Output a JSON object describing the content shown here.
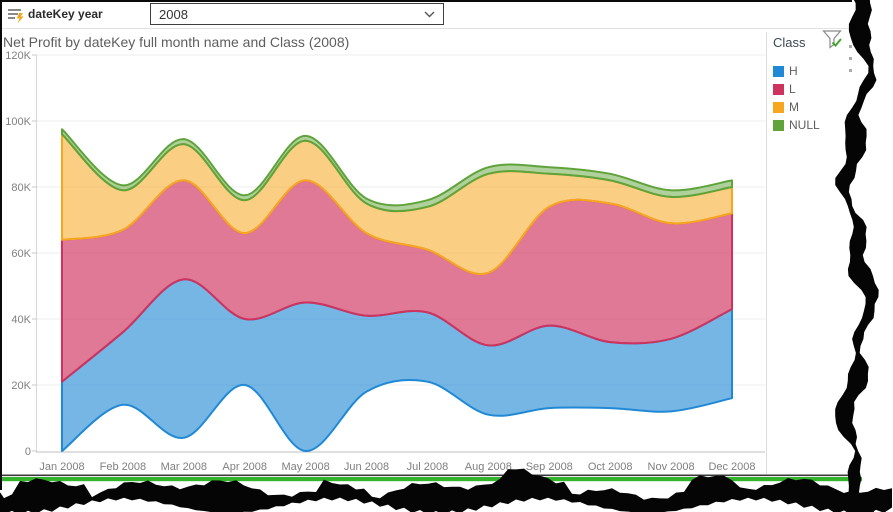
{
  "slicer": {
    "label": "dateKey year",
    "value": "2008"
  },
  "chart": {
    "title": "Net Profit by dateKey full month name and Class (2008)"
  },
  "legend": {
    "title": "Class",
    "items": [
      {
        "label": "H",
        "color": "#2089D5"
      },
      {
        "label": "L",
        "color": "#CE335E"
      },
      {
        "label": "M",
        "color": "#F6A71F"
      },
      {
        "label": "NULL",
        "color": "#5FA33A"
      }
    ]
  },
  "chart_data": {
    "type": "area",
    "stacked": true,
    "smooth": true,
    "title": "Net Profit by dateKey full month name and Class (2008)",
    "x": [
      "Jan 2008",
      "Feb 2008",
      "Mar 2008",
      "Apr 2008",
      "May 2008",
      "Jun 2008",
      "Jul 2008",
      "Aug 2008",
      "Sep 2008",
      "Oct 2008",
      "Nov 2008",
      "Dec 2008"
    ],
    "y_ticks": [
      "0",
      "20K",
      "40K",
      "60K",
      "80K",
      "100K",
      "120K"
    ],
    "ylim": [
      0,
      120000
    ],
    "grid": true,
    "legend_position": "right",
    "baseline": [
      0,
      14000,
      4000,
      20000,
      0,
      18000,
      21000,
      11000,
      13000,
      13000,
      12000,
      16000
    ],
    "series": [
      {
        "name": "H",
        "color": "#2089D5",
        "values": [
          21000,
          22000,
          48000,
          20000,
          45000,
          23000,
          21000,
          21000,
          25000,
          20000,
          22000,
          27000
        ]
      },
      {
        "name": "L",
        "color": "#CE335E",
        "values": [
          43000,
          31000,
          30000,
          26000,
          37000,
          25000,
          19000,
          22000,
          36000,
          42000,
          35000,
          29000
        ]
      },
      {
        "name": "M",
        "color": "#F6A71F",
        "values": [
          32000,
          12000,
          11000,
          10000,
          12000,
          9000,
          13000,
          30000,
          10000,
          7000,
          8000,
          8000
        ]
      },
      {
        "name": "NULL",
        "color": "#5FA33A",
        "values": [
          1500,
          1500,
          1500,
          1500,
          1500,
          1500,
          2000,
          2000,
          2000,
          2000,
          2000,
          2000
        ]
      }
    ],
    "note": "baseline is the lower edge of the H band as rendered; stacked boundaries = baseline + cumulative series"
  }
}
